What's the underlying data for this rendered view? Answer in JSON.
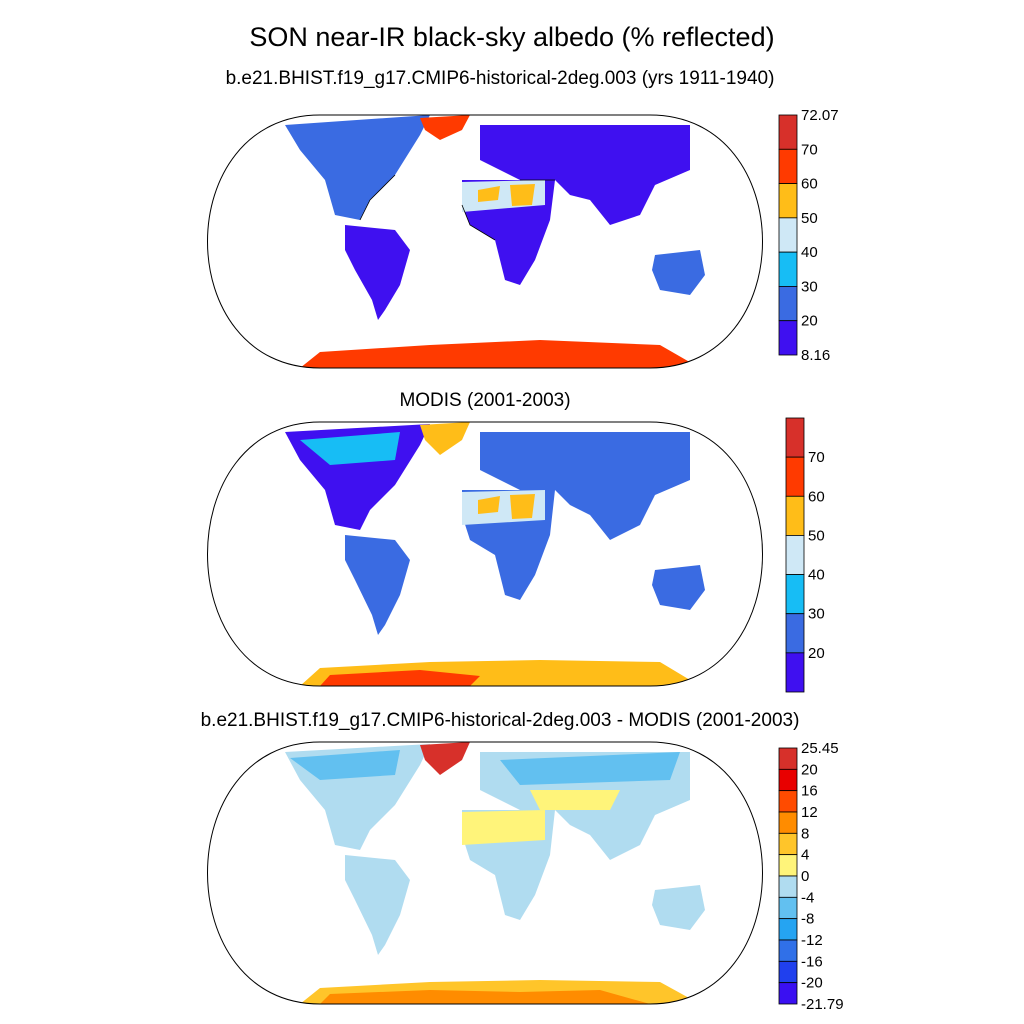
{
  "title": "SON near-IR black-sky albedo (% reflected)",
  "panels": [
    {
      "title": "b.e21.BHIST.f19_g17.CMIP6-historical-2deg.003 (yrs 1911-1940)",
      "colorbar": {
        "labels": [
          "72.07",
          "70",
          "60",
          "50",
          "40",
          "30",
          "20",
          "8.16"
        ],
        "colors": [
          "#d7302a",
          "#ff3a00",
          "#ffbd18",
          "#cfe8f6",
          "#17bdf5",
          "#3a6be2",
          "#3f10f0"
        ]
      }
    },
    {
      "title": "MODIS (2001-2003)",
      "colorbar": {
        "labels": [
          "70",
          "60",
          "50",
          "40",
          "30",
          "20"
        ],
        "colors": [
          "#d7302a",
          "#ff3a00",
          "#ffbd18",
          "#cfe8f6",
          "#17bdf5",
          "#3a6be2",
          "#3f10f0"
        ]
      }
    },
    {
      "title": "b.e21.BHIST.f19_g17.CMIP6-historical-2deg.003 - MODIS (2001-2003)",
      "colorbar": {
        "labels": [
          "25.45",
          "20",
          "16",
          "12",
          "8",
          "4",
          "0",
          "-4",
          "-8",
          "-12",
          "-16",
          "-20",
          "-21.79"
        ],
        "colors": [
          "#d7302a",
          "#e80000",
          "#ff4b00",
          "#ff8c00",
          "#ffc52a",
          "#fff47a",
          "#b0dcf0",
          "#62c0f0",
          "#25a4f2",
          "#3070e8",
          "#2040ee",
          "#3a10f2"
        ]
      }
    }
  ]
}
